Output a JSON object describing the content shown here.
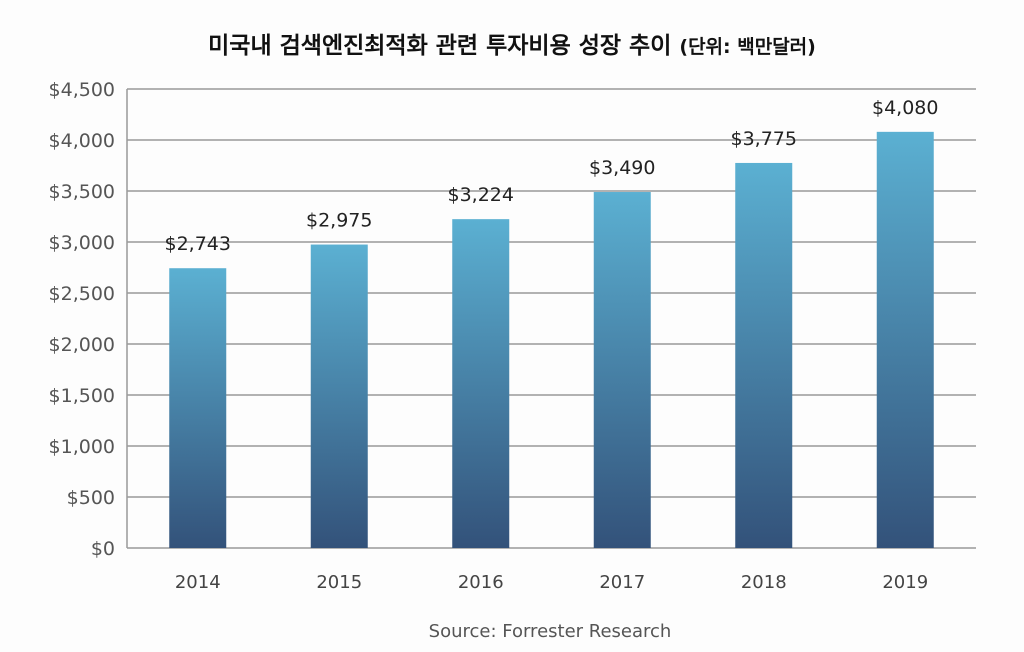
{
  "chart_data": {
    "type": "bar",
    "title": "미국내 검색엔진최적화 관련 투자비용 성장 추이",
    "subtitle": "(단위: 백만달러)",
    "categories": [
      "2014",
      "2015",
      "2016",
      "2017",
      "2018",
      "2019"
    ],
    "values": [
      2743,
      2975,
      3224,
      3490,
      3775,
      4080
    ],
    "data_labels": [
      "$2,743",
      "$2,975",
      "$3,224",
      "$3,490",
      "$3,775",
      "$4,080"
    ],
    "yticks": [
      "$0",
      "$500",
      "$1,000",
      "$1,500",
      "$2,000",
      "$2,500",
      "$3,000",
      "$3,500",
      "$4,000",
      "$4,500"
    ],
    "ylim": [
      0,
      4500
    ],
    "xlabel": "",
    "ylabel": "",
    "grid": true,
    "source": "Source: Forrester Research",
    "colors": {
      "bar_top": "#5bb0d2",
      "bar_bottom": "#33527a",
      "grid": "#9a9a9a"
    }
  }
}
